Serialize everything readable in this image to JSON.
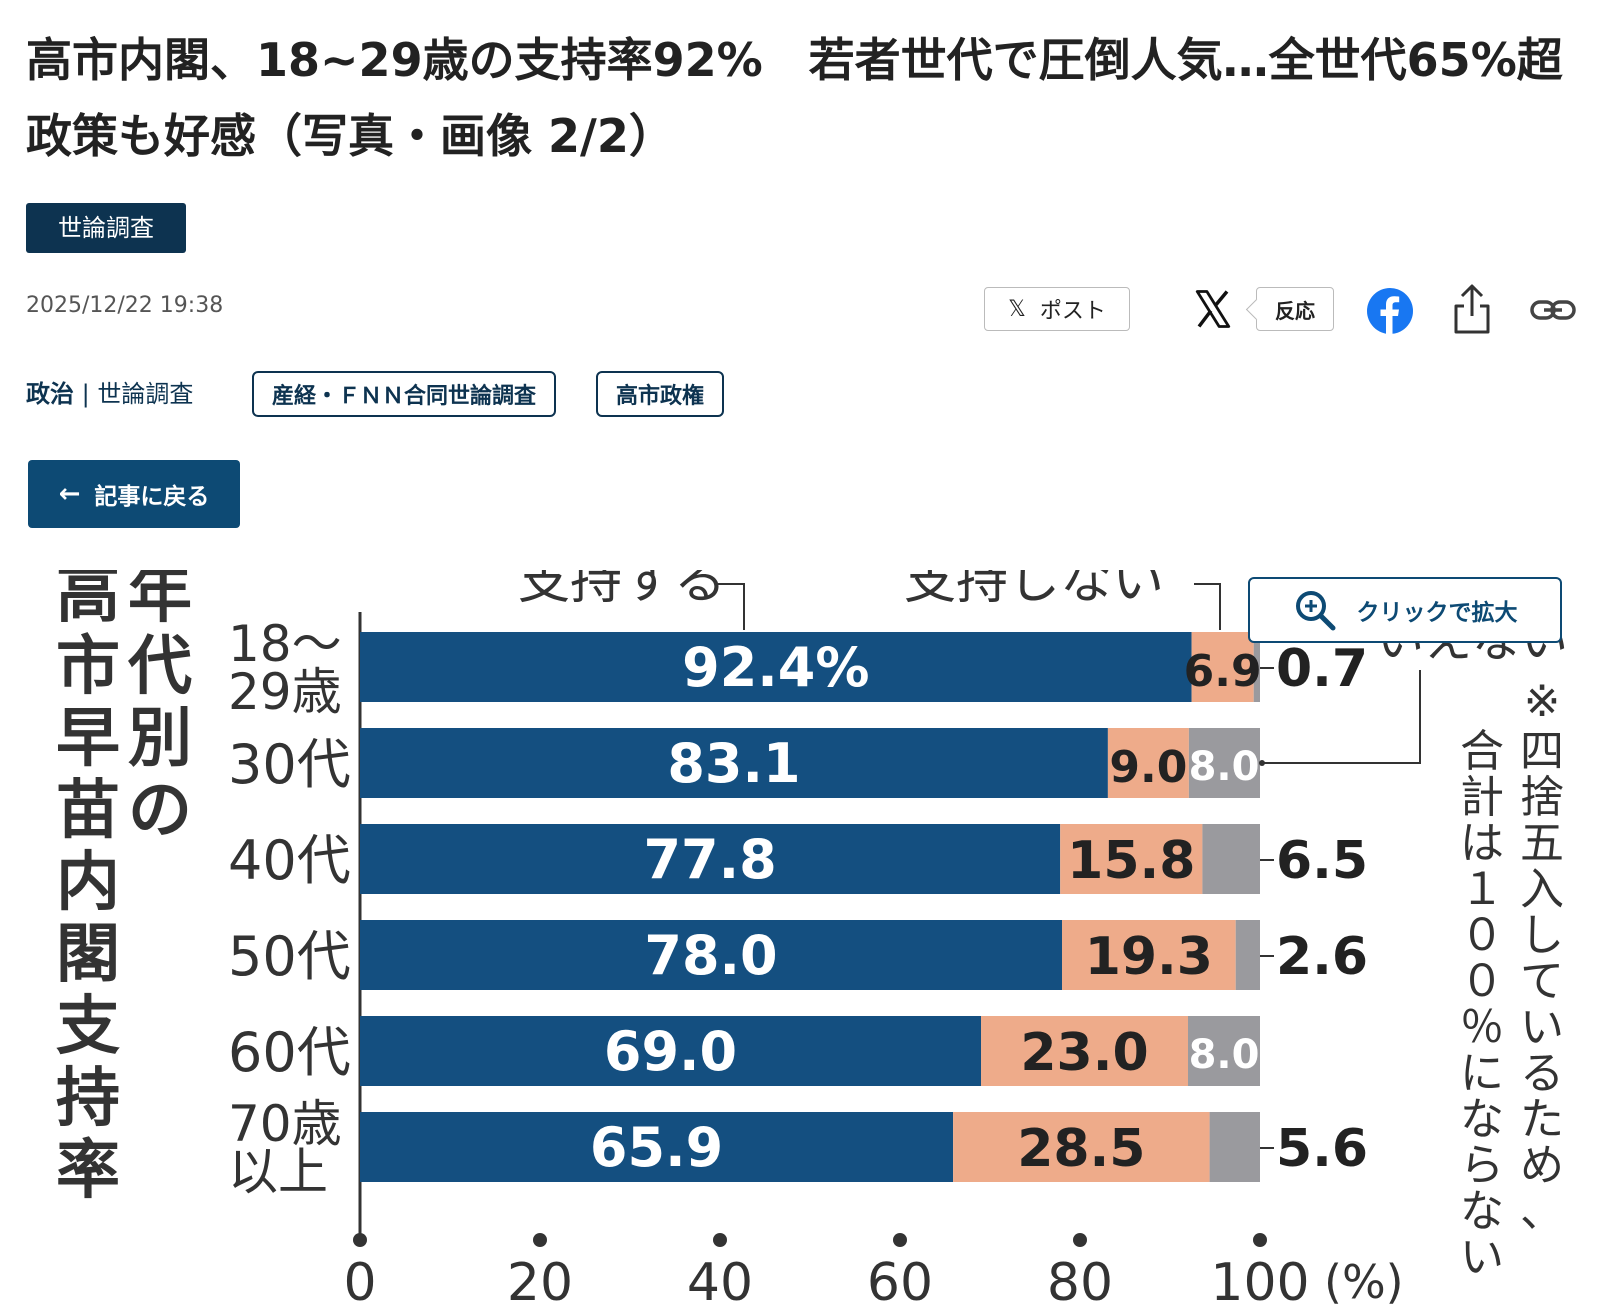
{
  "article": {
    "title": "高市内閣、18~29歳の支持率92%　若者世代で圧倒人気…全世代65%超　政策も好感（写真・画像 2/2）",
    "badge": "世論調査",
    "date": "2025/12/22 19:38"
  },
  "share": {
    "post_label": "ポスト",
    "react_label": "反応"
  },
  "category": {
    "main": "政治",
    "separator": "|",
    "sub": "世論調査"
  },
  "tags": [
    "産経・ＦＮＮ合同世論調査",
    "高市政権"
  ],
  "back_label": "記事に戻る",
  "zoom_label": "クリックで拡大",
  "colors": {
    "support": "#144f80",
    "not_support": "#eeab8a",
    "unknown": "#9a9a9e",
    "brand": "#0d3350"
  },
  "chart_data": {
    "type": "bar",
    "stacked": true,
    "orientation": "horizontal",
    "title": "年代別の高市早苗内閣支持率",
    "title_lines": [
      "年代別の",
      "高市早苗内閣支持率"
    ],
    "categories": [
      [
        "18～",
        "29歳"
      ],
      [
        "30代"
      ],
      [
        "40代"
      ],
      [
        "50代"
      ],
      [
        "60代"
      ],
      [
        "70歳",
        "以上"
      ]
    ],
    "series": [
      {
        "name": "支持する",
        "values": [
          92.4,
          83.1,
          77.8,
          78.0,
          69.0,
          65.9
        ],
        "labels": [
          "92.4%",
          "83.1",
          "77.8",
          "78.0",
          "69.0",
          "65.9"
        ]
      },
      {
        "name": "支持しない",
        "values": [
          6.9,
          9.0,
          15.8,
          19.3,
          23.0,
          28.5
        ],
        "labels": [
          "6.9",
          "9.0",
          "15.8",
          "19.3",
          "23.0",
          "28.5"
        ]
      },
      {
        "name": "いえない",
        "values": [
          0.7,
          8.0,
          6.5,
          2.6,
          8.0,
          5.6
        ],
        "labels": [
          "0.7",
          "8.0",
          "6.5",
          "2.6",
          "8.0",
          "5.6"
        ]
      }
    ],
    "xticks": [
      "0",
      "20",
      "40",
      "60",
      "80",
      "100"
    ],
    "xunit": "(%)",
    "xlim": [
      0,
      100
    ],
    "note": "※四捨五入しているため、合計は１００％にならない"
  }
}
